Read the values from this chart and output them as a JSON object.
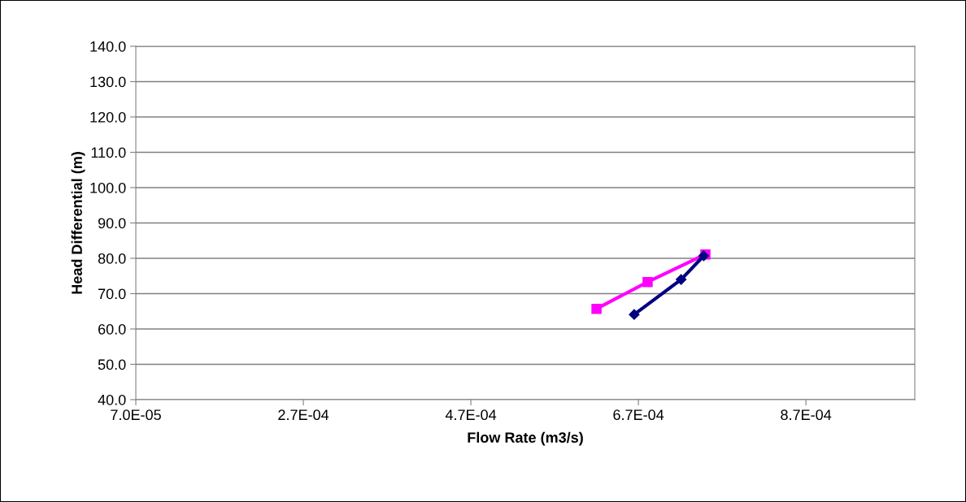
{
  "chart_data": {
    "type": "line",
    "xlabel": "Flow Rate (m3/s)",
    "ylabel": "Head Differential (m)",
    "xlim": [
      7e-05,
      0.001
    ],
    "ylim": [
      40,
      140
    ],
    "xticks": [
      {
        "value": 7e-05,
        "label": "7.0E-05"
      },
      {
        "value": 0.00027,
        "label": "2.7E-04"
      },
      {
        "value": 0.00047,
        "label": "4.7E-04"
      },
      {
        "value": 0.00067,
        "label": "6.7E-04"
      },
      {
        "value": 0.00087,
        "label": "8.7E-04"
      }
    ],
    "yticks": [
      {
        "value": 40,
        "label": "40.0"
      },
      {
        "value": 50,
        "label": "50.0"
      },
      {
        "value": 60,
        "label": "60.0"
      },
      {
        "value": 70,
        "label": "70.0"
      },
      {
        "value": 80,
        "label": "80.0"
      },
      {
        "value": 90,
        "label": "90.0"
      },
      {
        "value": 100,
        "label": "100.0"
      },
      {
        "value": 110,
        "label": "110.0"
      },
      {
        "value": 120,
        "label": "120.0"
      },
      {
        "value": 130,
        "label": "130.0"
      },
      {
        "value": 140,
        "label": "140.0"
      }
    ],
    "grid": "y",
    "legend": false,
    "series": [
      {
        "color": "#000080",
        "marker": "diamond",
        "x": [
          0.000665,
          0.000721,
          0.000748
        ],
        "values": [
          64.1,
          74.0,
          80.7
        ]
      },
      {
        "color": "#ff00ff",
        "marker": "square",
        "x": [
          0.00062,
          0.000681,
          0.00075
        ],
        "values": [
          65.7,
          73.3,
          81.1
        ]
      }
    ]
  }
}
